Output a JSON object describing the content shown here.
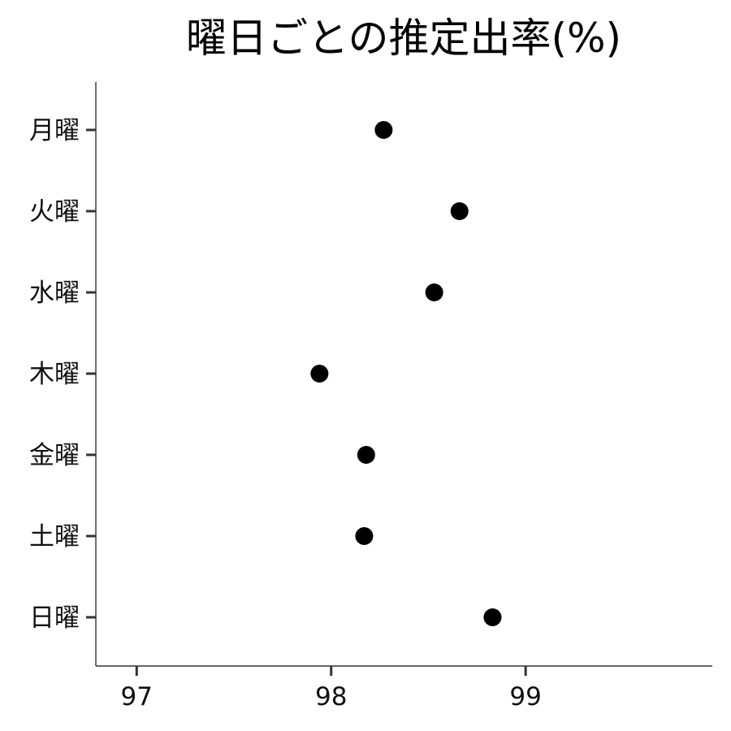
{
  "chart_data": {
    "type": "scatter",
    "title": "曜日ごとの推定出率(%)",
    "xlabel": "",
    "ylabel": "",
    "categories": [
      "月曜",
      "火曜",
      "水曜",
      "木曜",
      "金曜",
      "土曜",
      "日曜"
    ],
    "values": [
      98.27,
      98.66,
      98.53,
      97.94,
      98.18,
      98.17,
      98.83
    ],
    "xlim": [
      96.79,
      99.96
    ],
    "xticks": [
      97,
      98,
      99
    ],
    "grid": false,
    "marker_color": "#000000"
  }
}
